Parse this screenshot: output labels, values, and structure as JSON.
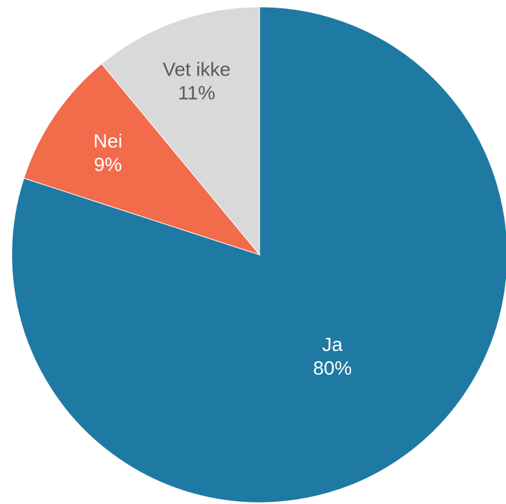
{
  "chart_data": {
    "type": "pie",
    "start_angle_deg": 0,
    "direction": "clockwise",
    "slices": [
      {
        "label": "Ja",
        "value": 80,
        "value_label": "80%",
        "color": "#1F7AA3",
        "text_color": "#FFFFFF"
      },
      {
        "label": "Nei",
        "value": 9,
        "value_label": "9%",
        "color": "#F26B4B",
        "text_color": "#FFFFFF"
      },
      {
        "label": "Vet ikke",
        "value": 11,
        "value_label": "11%",
        "color": "#D9D9D9",
        "text_color": "#595959"
      }
    ]
  }
}
